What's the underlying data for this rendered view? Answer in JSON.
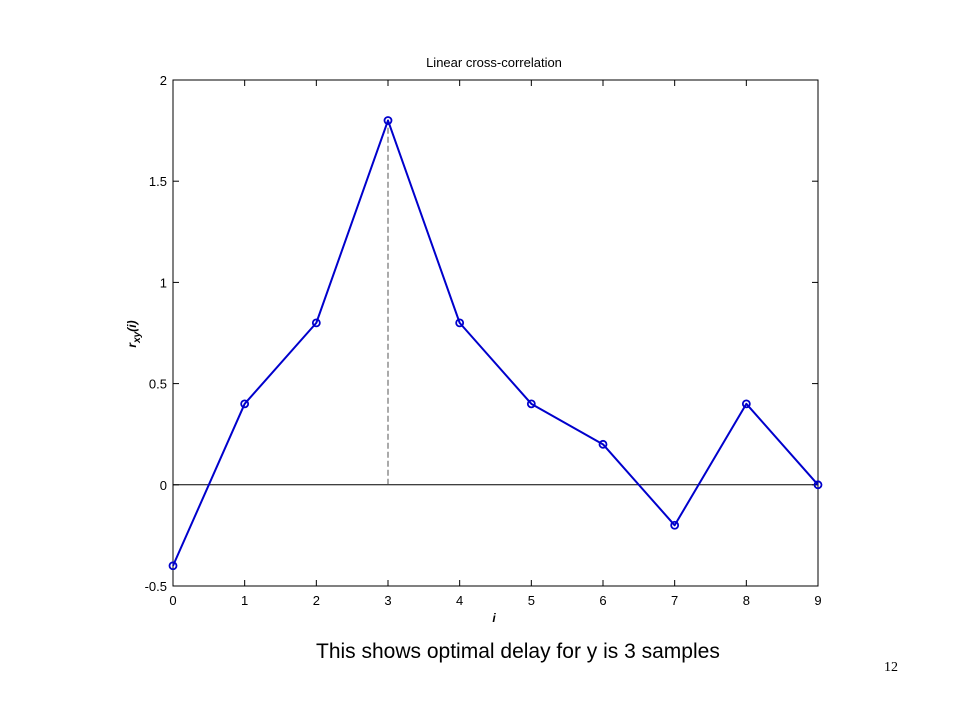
{
  "chart_data": {
    "type": "line",
    "title": "Linear cross-correlation",
    "xlabel": "i",
    "ylabel_main": "r",
    "ylabel_sub": "xy",
    "ylabel_arg": "(i)",
    "x": [
      0,
      1,
      2,
      3,
      4,
      5,
      6,
      7,
      8,
      9
    ],
    "series": [
      {
        "values": [
          -0.4,
          0.4,
          0.8,
          1.8,
          0.8,
          0.4,
          0.2,
          -0.2,
          0.4,
          0.0
        ]
      }
    ],
    "xlim": [
      0,
      9
    ],
    "ylim": [
      -0.5,
      2
    ],
    "xticks": [
      "0",
      "1",
      "2",
      "3",
      "4",
      "5",
      "6",
      "7",
      "8",
      "9"
    ],
    "yticks": [
      "-0.5",
      "0",
      "0.5",
      "1",
      "1.5",
      "2"
    ],
    "ytick_values": [
      -0.5,
      0,
      0.5,
      1,
      1.5,
      2
    ],
    "grid": false,
    "zero_line": true,
    "peak_marker": {
      "x": 3,
      "style": "dashed"
    },
    "marker": "circle",
    "line_color": "#0000cc",
    "aux_color": "#555555"
  },
  "caption": "This shows optimal delay for y is 3 samples",
  "page_number": "12"
}
